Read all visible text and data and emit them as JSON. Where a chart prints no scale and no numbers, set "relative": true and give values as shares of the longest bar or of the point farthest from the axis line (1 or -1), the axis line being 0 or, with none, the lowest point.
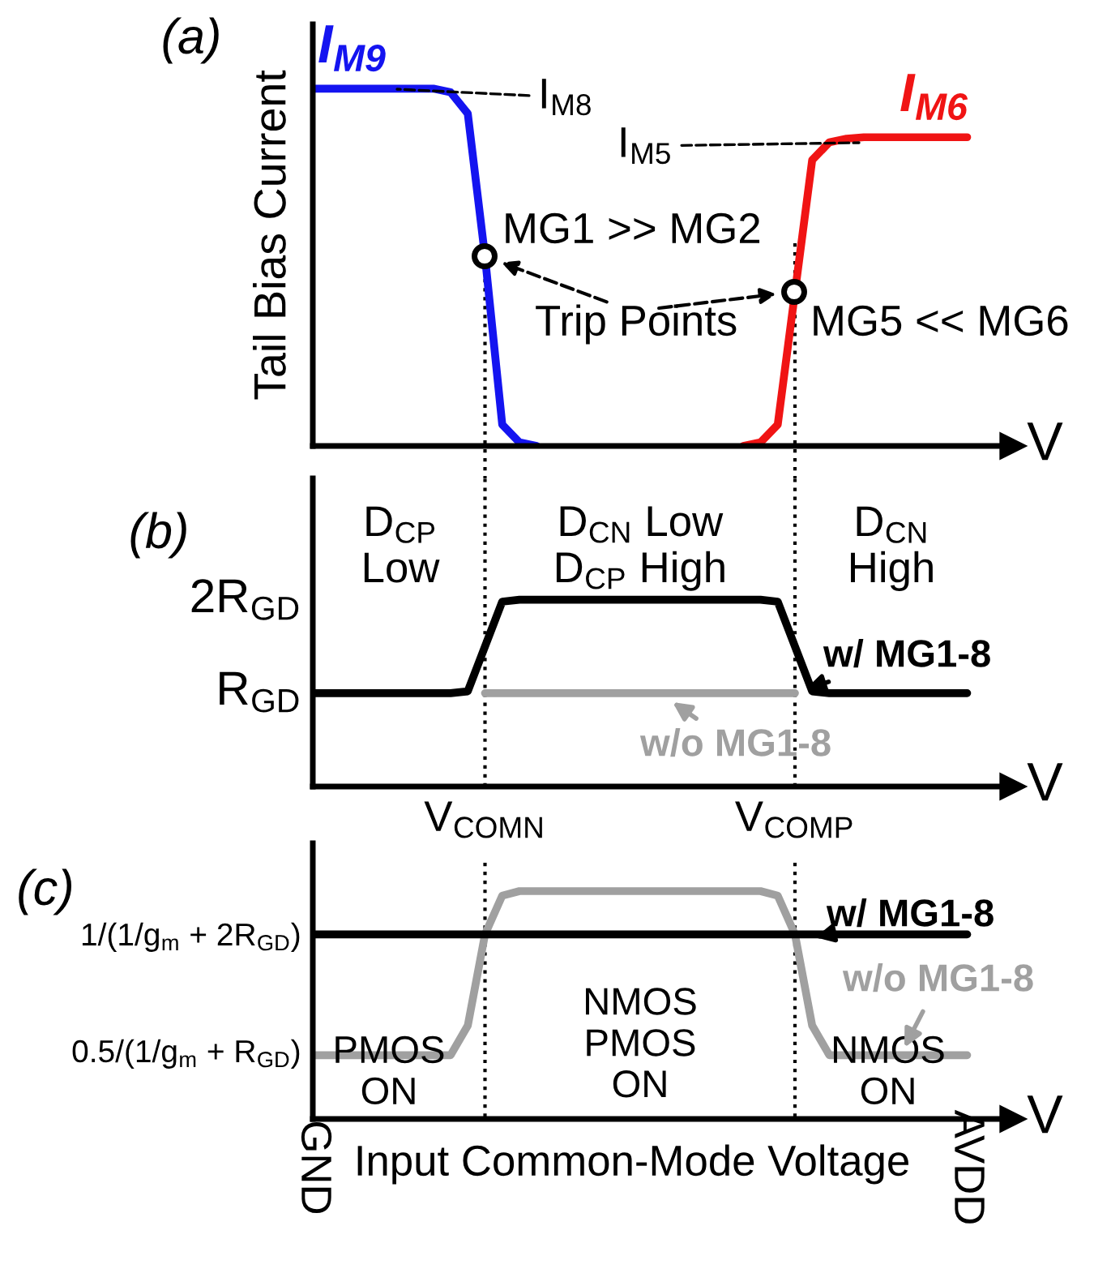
{
  "chart_data": [
    {
      "type": "line",
      "title": "(a)",
      "ylabel": "Tail Bias Current",
      "xlabel": "V",
      "relative": true,
      "categories": [
        null,
        null,
        null,
        null,
        null,
        null,
        null,
        null,
        null,
        null,
        null,
        null,
        null,
        null,
        null,
        null,
        null,
        null,
        null,
        null,
        null,
        null,
        null,
        null,
        null,
        null,
        null,
        null,
        null,
        null,
        null,
        null,
        null,
        null,
        null,
        null,
        null,
        null,
        null
      ],
      "series": [
        {
          "name": "I$_{M9}$",
          "color": "#1414f0",
          "values": [
            1,
            1,
            1,
            1,
            1,
            1,
            1,
            1,
            0.99,
            0.93,
            0.53,
            0.06,
            0.01,
            0,
            null,
            null,
            null,
            null,
            null,
            null,
            null,
            null,
            null,
            null,
            null,
            null,
            null,
            null,
            null,
            null,
            null,
            null,
            null,
            null,
            null,
            null,
            null,
            null,
            null
          ]
        },
        {
          "name": "I$_{M6}$",
          "color": "#f01414",
          "values": [
            null,
            null,
            null,
            null,
            null,
            null,
            null,
            null,
            null,
            null,
            null,
            null,
            null,
            null,
            null,
            null,
            null,
            null,
            null,
            null,
            null,
            null,
            null,
            null,
            null,
            0,
            0.01,
            0.06,
            0.43,
            0.8,
            0.85,
            0.86,
            0.864,
            0.864,
            0.864,
            0.864,
            0.864,
            0.864,
            0.864
          ]
        }
      ],
      "annotations": [
        "I$_{M8}$",
        "I$_{M5}$",
        "MG1 >> MG2",
        "Trip Points",
        "MG5 << MG6"
      ]
    },
    {
      "type": "line",
      "title": "(b)",
      "xlabel": "V",
      "relative": true,
      "categories": [
        null,
        null,
        null,
        null,
        null,
        null,
        null,
        null,
        null,
        null,
        "V$_{COMN}$",
        null,
        null,
        null,
        null,
        null,
        null,
        null,
        null,
        null,
        null,
        null,
        null,
        null,
        null,
        null,
        null,
        null,
        "V$_{COMP}$",
        null,
        null,
        null,
        null,
        null,
        null,
        null,
        null,
        null,
        null
      ],
      "series": [
        {
          "name": "w/o MG1-8",
          "color": "#a0a0a0",
          "values": [
            null,
            null,
            null,
            null,
            null,
            null,
            null,
            null,
            null,
            null,
            0.5,
            0.5,
            0.5,
            0.5,
            0.5,
            0.5,
            0.5,
            0.5,
            0.5,
            0.5,
            0.5,
            0.5,
            0.5,
            0.5,
            0.5,
            0.5,
            0.5,
            0.5,
            0.5,
            null,
            null,
            null,
            null,
            null,
            null,
            null,
            null,
            null,
            null
          ]
        },
        {
          "name": "w/ MG1-8",
          "color": "#000000",
          "values": [
            0.5,
            0.5,
            0.5,
            0.5,
            0.5,
            0.5,
            0.5,
            0.5,
            0.5,
            0.51,
            0.75,
            0.99,
            1,
            1,
            1,
            1,
            1,
            1,
            1,
            1,
            1,
            1,
            1,
            1,
            1,
            1,
            1,
            0.99,
            0.75,
            0.51,
            0.5,
            0.5,
            0.5,
            0.5,
            0.5,
            0.5,
            0.5,
            0.5,
            0.5
          ]
        }
      ],
      "ref_lines": [
        {
          "axis": "x",
          "value": "V$_{COMN}$",
          "line_style": "dotted",
          "color": "#000000"
        },
        {
          "axis": "x",
          "value": "V$_{COMP}$",
          "line_style": "dotted",
          "color": "#000000"
        }
      ],
      "annotations": [
        "D$_{CP}$\nLow",
        "D$_{CN}$ Low\nD$_{CP}$ High",
        "D$_{CN}$\nHigh",
        "2R$_{GD}$",
        "R$_{GD}$"
      ]
    },
    {
      "type": "line",
      "title": "(c)",
      "xlabel": "V",
      "relative": true,
      "categories": [
        null,
        null,
        null,
        null,
        null,
        null,
        null,
        null,
        null,
        null,
        null,
        null,
        null,
        null,
        null,
        null,
        null,
        null,
        null,
        null,
        null,
        null,
        null,
        null,
        null,
        null,
        null,
        null,
        null,
        null,
        null,
        null,
        null,
        null,
        null,
        null,
        null,
        null,
        null
      ],
      "series": [
        {
          "name": "w/o MG1-8",
          "color": "#a0a0a0",
          "values": [
            0.28,
            0.28,
            0.28,
            0.28,
            0.28,
            0.28,
            0.28,
            0.28,
            0.28,
            0.41,
            0.81,
            0.98,
            1,
            1,
            1,
            1,
            1,
            1,
            1,
            1,
            1,
            1,
            1,
            1,
            1,
            1,
            1,
            0.98,
            0.81,
            0.41,
            0.28,
            0.28,
            0.28,
            0.28,
            0.28,
            0.28,
            0.28,
            0.28,
            0.28
          ]
        },
        {
          "name": "w/ MG1-8",
          "color": "#000000",
          "values": [
            0.81,
            0.81,
            0.81,
            0.81,
            0.81,
            0.81,
            0.81,
            0.81,
            0.81,
            0.81,
            0.81,
            0.81,
            0.81,
            0.81,
            0.81,
            0.81,
            0.81,
            0.81,
            0.81,
            0.81,
            0.81,
            0.81,
            0.81,
            0.81,
            0.81,
            0.81,
            0.81,
            0.81,
            0.81,
            0.81,
            0.81,
            0.81,
            0.81,
            0.81,
            0.81,
            0.81,
            0.81,
            0.81,
            0.81
          ]
        }
      ],
      "annotations": [
        "PMOS\nON",
        "NMOS\nPMOS\nON",
        "NMOS\nON",
        "Input Common-Mode Voltage",
        "1/(1/g$_{m}$ + 2R$_{GD}$)",
        "0.5/(1/g$_{m}$ + R$_{GD}$)",
        "GND",
        "AVDD"
      ]
    }
  ]
}
